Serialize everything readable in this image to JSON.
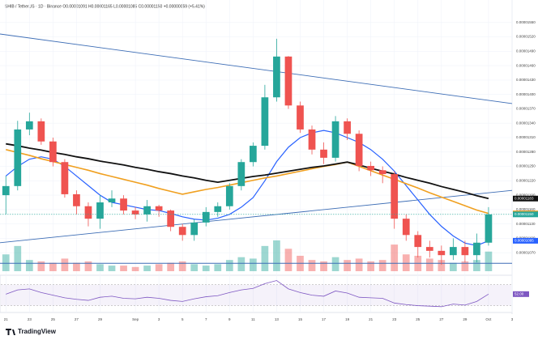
{
  "chart_data": {
    "type": "candlestick",
    "title": "SHIB / TetherUS · 1D · Binance  O0.00001091 H0.00001165 L0.00001085 C0.00001150 +0.00000059 (+5.41%)",
    "brand": "TradingView",
    "xlim": [
      -0.5,
      43
    ],
    "xticks": [
      {
        "value": 0,
        "label": "21"
      },
      {
        "value": 2,
        "label": "23"
      },
      {
        "value": 4,
        "label": "25"
      },
      {
        "value": 6,
        "label": "27"
      },
      {
        "value": 8,
        "label": "29"
      },
      {
        "value": 11,
        "label": "Sep"
      },
      {
        "value": 13,
        "label": "3"
      },
      {
        "value": 15,
        "label": "5"
      },
      {
        "value": 17,
        "label": "7"
      },
      {
        "value": 19,
        "label": "9"
      },
      {
        "value": 21,
        "label": "11"
      },
      {
        "value": 23,
        "label": "13"
      },
      {
        "value": 25,
        "label": "15"
      },
      {
        "value": 27,
        "label": "17"
      },
      {
        "value": 29,
        "label": "19"
      },
      {
        "value": 31,
        "label": "21"
      },
      {
        "value": 33,
        "label": "23"
      },
      {
        "value": 35,
        "label": "25"
      },
      {
        "value": 37,
        "label": "27"
      },
      {
        "value": 39,
        "label": "29"
      },
      {
        "value": 41,
        "label": "Oct"
      },
      {
        "value": 43,
        "label": "3"
      }
    ],
    "ylim": [
      1.04e-05,
      1.58e-05
    ],
    "yticks": [
      {
        "value": 1.07e-05,
        "label": "0.00001070"
      },
      {
        "value": 1.1e-05,
        "label": "0.00001100"
      },
      {
        "value": 1.13e-05,
        "label": "0.00001130"
      },
      {
        "value": 1.16e-05,
        "label": "0.00001160"
      },
      {
        "value": 1.19e-05,
        "label": "0.00001190"
      },
      {
        "value": 1.22e-05,
        "label": "0.00001220"
      },
      {
        "value": 1.25e-05,
        "label": "0.00001250"
      },
      {
        "value": 1.28e-05,
        "label": "0.00001280"
      },
      {
        "value": 1.31e-05,
        "label": "0.00001310"
      },
      {
        "value": 1.34e-05,
        "label": "0.00001340"
      },
      {
        "value": 1.37e-05,
        "label": "0.00001370"
      },
      {
        "value": 1.4e-05,
        "label": "0.00001400"
      },
      {
        "value": 1.43e-05,
        "label": "0.00001430"
      },
      {
        "value": 1.46e-05,
        "label": "0.00001460"
      },
      {
        "value": 1.49e-05,
        "label": "0.00001490"
      },
      {
        "value": 1.52e-05,
        "label": "0.00001520"
      },
      {
        "value": 1.55e-05,
        "label": "0.00001550"
      }
    ],
    "up_color": "#26a69a",
    "down_color": "#ef5350",
    "open": [
      1.19e-05,
      1.209e-05,
      1.327e-05,
      1.344e-05,
      1.302e-05,
      1.259e-05,
      1.192e-05,
      1.167e-05,
      1.141e-05,
      1.175e-05,
      1.183e-05,
      1.158e-05,
      1.15e-05,
      1.167e-05,
      1.158e-05,
      1.124e-05,
      1.107e-05,
      1.133e-05,
      1.155e-05,
      1.167e-05,
      1.209e-05,
      1.259e-05,
      1.293e-05,
      1.394e-05,
      1.479e-05,
      1.377e-05,
      1.327e-05,
      1.285e-05,
      1.268e-05,
      1.344e-05,
      1.318e-05,
      1.251e-05,
      1.242e-05,
      1.234e-05,
      1.141e-05,
      1.107e-05,
      1.082e-05,
      1.074e-05,
      1.065e-05,
      1.082e-05,
      1.065e-05,
      1.091e-05
    ],
    "high": [
      1.23e-05,
      1.345e-05,
      1.362e-05,
      1.35e-05,
      1.31e-05,
      1.265e-05,
      1.2e-05,
      1.175e-05,
      1.19e-05,
      1.2e-05,
      1.19e-05,
      1.165e-05,
      1.18e-05,
      1.17e-05,
      1.16e-05,
      1.13e-05,
      1.14e-05,
      1.165e-05,
      1.175e-05,
      1.215e-05,
      1.265e-05,
      1.3e-05,
      1.42e-05,
      1.516e-05,
      1.48e-05,
      1.385e-05,
      1.335e-05,
      1.3e-05,
      1.355e-05,
      1.35e-05,
      1.325e-05,
      1.26e-05,
      1.25e-05,
      1.24e-05,
      1.15e-05,
      1.115e-05,
      1.095e-05,
      1.085e-05,
      1.1e-05,
      1.095e-05,
      1.11e-05,
      1.165e-05
    ],
    "low": [
      1.15e-05,
      1.2e-05,
      1.315e-05,
      1.295e-05,
      1.25e-05,
      1.185e-05,
      1.15e-05,
      1.125e-05,
      1.12e-05,
      1.165e-05,
      1.15e-05,
      1.14e-05,
      1.135e-05,
      1.145e-05,
      1.115e-05,
      1.095e-05,
      1.095e-05,
      1.125e-05,
      1.145e-05,
      1.16e-05,
      1.2e-05,
      1.25e-05,
      1.285e-05,
      1.385e-05,
      1.37e-05,
      1.32e-05,
      1.275e-05,
      1.255e-05,
      1.26e-05,
      1.305e-05,
      1.24e-05,
      1.23e-05,
      1.215e-05,
      1.12e-05,
      1.095e-05,
      1.06e-05,
      1.06e-05,
      1.045e-05,
      1.055e-05,
      1.05e-05,
      1.05e-05,
      1.085e-05
    ],
    "close": [
      1.209e-05,
      1.327e-05,
      1.344e-05,
      1.302e-05,
      1.259e-05,
      1.192e-05,
      1.167e-05,
      1.141e-05,
      1.175e-05,
      1.183e-05,
      1.158e-05,
      1.15e-05,
      1.167e-05,
      1.158e-05,
      1.124e-05,
      1.107e-05,
      1.133e-05,
      1.155e-05,
      1.167e-05,
      1.209e-05,
      1.259e-05,
      1.293e-05,
      1.394e-05,
      1.479e-05,
      1.377e-05,
      1.327e-05,
      1.285e-05,
      1.268e-05,
      1.344e-05,
      1.318e-05,
      1.251e-05,
      1.242e-05,
      1.234e-05,
      1.141e-05,
      1.107e-05,
      1.082e-05,
      1.074e-05,
      1.065e-05,
      1.082e-05,
      1.065e-05,
      1.091e-05,
      1.15e-05
    ],
    "close_last_label": "0.00001150",
    "volume": [
      60,
      90,
      40,
      35,
      30,
      45,
      30,
      35,
      25,
      20,
      20,
      15,
      20,
      25,
      30,
      35,
      25,
      20,
      25,
      40,
      50,
      45,
      90,
      110,
      80,
      55,
      40,
      35,
      50,
      40,
      45,
      35,
      40,
      95,
      60,
      55,
      45,
      40,
      30,
      35,
      40,
      70
    ],
    "vlim": [
      0,
      130
    ],
    "ma": [
      {
        "color": "#2962ff",
        "width": 1.2,
        "last_label": "0.00001095",
        "values": [
          1.23e-05,
          1.25e-05,
          1.265e-05,
          1.27e-05,
          1.265e-05,
          1.25e-05,
          1.23e-05,
          1.21e-05,
          1.19e-05,
          1.175e-05,
          1.17e-05,
          1.165e-05,
          1.16e-05,
          1.158e-05,
          1.152e-05,
          1.145e-05,
          1.14e-05,
          1.138e-05,
          1.142e-05,
          1.15e-05,
          1.165e-05,
          1.185e-05,
          1.22e-05,
          1.26e-05,
          1.29e-05,
          1.31e-05,
          1.32e-05,
          1.325e-05,
          1.32e-05,
          1.31e-05,
          1.3e-05,
          1.285e-05,
          1.265e-05,
          1.24e-05,
          1.21e-05,
          1.18e-05,
          1.15e-05,
          1.125e-05,
          1.105e-05,
          1.09e-05,
          1.085e-05,
          1.095e-05
        ]
      },
      {
        "color": "#f0a020",
        "width": 1.6,
        "last_label": "0.00001152",
        "values": [
          1.285e-05,
          1.279e-05,
          1.273e-05,
          1.266e-05,
          1.26e-05,
          1.254e-05,
          1.248e-05,
          1.242e-05,
          1.235e-05,
          1.229e-05,
          1.223e-05,
          1.217e-05,
          1.211e-05,
          1.204e-05,
          1.198e-05,
          1.192e-05,
          1.197e-05,
          1.202e-05,
          1.206e-05,
          1.211e-05,
          1.216e-05,
          1.221e-05,
          1.226e-05,
          1.23e-05,
          1.235e-05,
          1.24e-05,
          1.245e-05,
          1.25e-05,
          1.254e-05,
          1.259e-05,
          1.25e-05,
          1.241e-05,
          1.232e-05,
          1.223e-05,
          1.214e-05,
          1.205e-05,
          1.195e-05,
          1.186e-05,
          1.177e-05,
          1.168e-05,
          1.159e-05,
          1.152e-05
        ]
      },
      {
        "color": "#111111",
        "width": 1.8,
        "last_label": "0.00001183",
        "values": [
          1.297e-05,
          1.293e-05,
          1.288e-05,
          1.284e-05,
          1.279e-05,
          1.275e-05,
          1.27e-05,
          1.266e-05,
          1.261e-05,
          1.257e-05,
          1.253e-05,
          1.248e-05,
          1.244e-05,
          1.239e-05,
          1.235e-05,
          1.23e-05,
          1.226e-05,
          1.221e-05,
          1.217e-05,
          1.221e-05,
          1.225e-05,
          1.229e-05,
          1.232e-05,
          1.236e-05,
          1.24e-05,
          1.244e-05,
          1.248e-05,
          1.251e-05,
          1.255e-05,
          1.259e-05,
          1.253e-05,
          1.246e-05,
          1.24e-05,
          1.234e-05,
          1.227e-05,
          1.221e-05,
          1.215e-05,
          1.208e-05,
          1.202e-05,
          1.196e-05,
          1.189e-05,
          1.183e-05
        ]
      }
    ],
    "trendlines": [
      {
        "color": "#3d6db5",
        "start": 1.526e-05,
        "end": 1.381e-05
      },
      {
        "color": "#3d6db5",
        "start": 1.091e-05,
        "end": 1.2e-05
      },
      {
        "color": "#3d6db5",
        "start": 1.048e-05,
        "end": 1.048e-05
      }
    ],
    "rsi": {
      "color": "#7e57c2",
      "ylim": [
        20,
        85
      ],
      "bands": [
        30,
        70
      ],
      "last_label": "52.00",
      "values": [
        52,
        60,
        62,
        55,
        50,
        45,
        42,
        40,
        46,
        48,
        44,
        43,
        46,
        44,
        40,
        38,
        43,
        47,
        49,
        55,
        60,
        63,
        72,
        78,
        62,
        55,
        50,
        48,
        58,
        54,
        46,
        45,
        44,
        35,
        32,
        30,
        29,
        28,
        33,
        31,
        38,
        52
      ]
    }
  }
}
